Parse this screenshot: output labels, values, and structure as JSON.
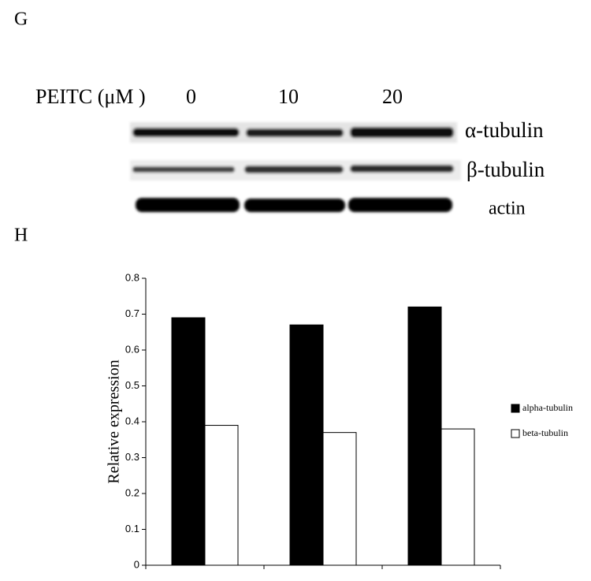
{
  "figure": {
    "panel_g": "G",
    "blot_header": "PEITC (μM )",
    "lanes": [
      "0",
      "10",
      "20"
    ],
    "band_labels": [
      "α-tubulin",
      "β-tubulin",
      "actin"
    ],
    "panel_h": "H"
  },
  "chart_data": {
    "type": "bar",
    "y_label": "Relative expression",
    "categories": [
      null,
      null,
      null
    ],
    "series": [
      {
        "name": "alpha-tubulin",
        "color": "#000000",
        "values": [
          0.69,
          0.67,
          0.72
        ]
      },
      {
        "name": "beta-tubulin",
        "color": "#ffffff",
        "values": [
          0.39,
          0.37,
          0.38
        ]
      }
    ],
    "ylim": [
      0,
      0.8
    ],
    "yticks": [
      0,
      0.1,
      0.2,
      0.3,
      0.4,
      0.5,
      0.6,
      0.7,
      0.8
    ],
    "legend": "right"
  }
}
